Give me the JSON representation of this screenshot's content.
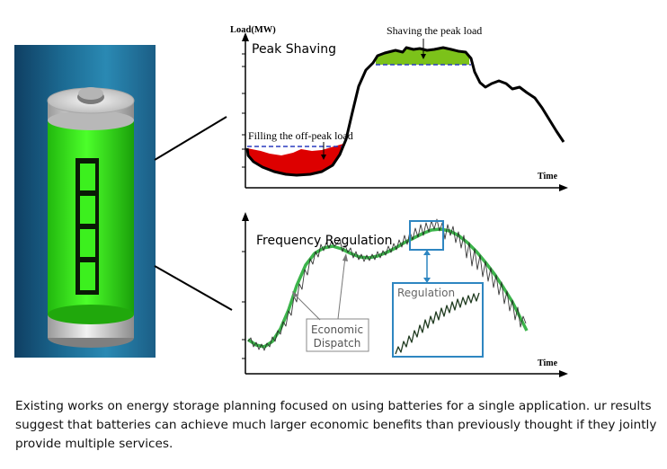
{
  "top_chart": {
    "y_axis_label": "Load(MW)",
    "title": "Peak Shaving",
    "x_axis_label": "Time",
    "peak_annotation": "Shaving the peak load",
    "offpeak_annotation": "Filling the off-peak load"
  },
  "bottom_chart": {
    "title": "Frequency Regulation",
    "x_axis_label": "Time",
    "dispatch_label_line1": "Economic",
    "dispatch_label_line2": "Dispatch",
    "regulation_label": "Regulation"
  },
  "caption": {
    "text": "Existing works on energy storage planning focused on using batteries for a single application. ur results suggest that batteries can achieve much larger economic benefits than previously thought if they jointly provide multiple services."
  },
  "colors": {
    "battery_green": "#3cf01e",
    "peak_fill": "#7cc21a",
    "offpeak_fill": "#dd0000",
    "regulation_curve": "#3cb44b",
    "callout_blue": "#2e86c1",
    "panel_blue": "#1c6b93"
  }
}
